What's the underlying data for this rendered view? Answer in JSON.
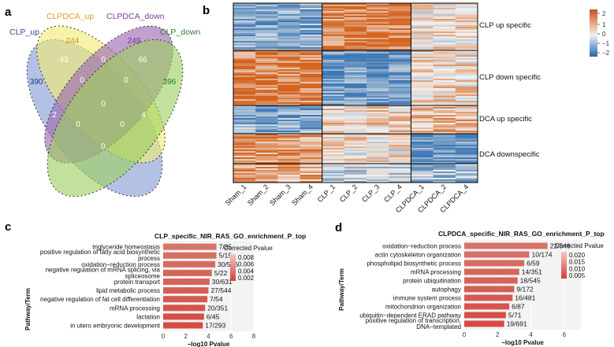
{
  "panels": {
    "a": "a",
    "b": "b",
    "c": "c",
    "d": "d"
  },
  "venn": {
    "sets": [
      {
        "name": "CLP_up",
        "color": "#2d4a9a"
      },
      {
        "name": "CLPDCA_up",
        "color": "#e49a23"
      },
      {
        "name": "CLPDCA_down",
        "color": "#7b3e96"
      },
      {
        "name": "CLP_down",
        "color": "#2f7d2f"
      }
    ],
    "counts": {
      "clp_up_only": "390",
      "clpdca_up_only": "244",
      "clpdca_down_only": "249",
      "clp_down_only": "396",
      "up_up": "43",
      "up_dcadown": "0",
      "dcaup_dcadown": "0",
      "dcadown_down": "66",
      "three_a": "0",
      "three_b": "0",
      "center": "0",
      "left_low": "2",
      "mid_low_left": "0",
      "mid_low_right": "0",
      "right_low": "4",
      "bottom": "0"
    }
  },
  "heatmap": {
    "columns": [
      "Sham_1",
      "Sham_2",
      "Sham_3",
      "Sham_4",
      "CLP_1",
      "CLP_2",
      "CLP_3",
      "CLP_4",
      "CLPDCA_1",
      "CLPDCA_2",
      "CLPDCA_4"
    ],
    "row_groups": [
      "CLP up specific",
      "CLP down specific",
      "DCA up specific",
      "DCA downspecific"
    ],
    "scale_ticks": [
      "2",
      "1",
      "0",
      "−1",
      "−2"
    ],
    "colors": {
      "high": "#d4631f",
      "mid": "#f4f1ee",
      "low": "#3f79b5"
    }
  },
  "chart_data": [
    {
      "type": "bar",
      "title": "CLP_specific_NIR_RAS_GO_enrichment_P_top",
      "ylabel": "Pathway/Term",
      "xlabel": "−log10 Pvalue",
      "xlim": [
        0,
        8
      ],
      "xticks": [
        "0",
        "2",
        "4",
        "6",
        "8"
      ],
      "legend_title": "Corrected Pvalue",
      "legend_ticks": [
        "0.008",
        "0.006",
        "0.004",
        "0.002"
      ],
      "categories": [
        [
          "triglyceride homeostasis"
        ],
        [
          "positive regulation of fatty acid biosynthetic",
          "process"
        ],
        [
          "oxidation−reduction process"
        ],
        [
          "negative regulation of mRNA splicing, via",
          "spliceosome"
        ],
        [
          "protein transport"
        ],
        [
          "lipid metabolic process"
        ],
        [
          "negative regulation of fat cell differentiation"
        ],
        [
          "mRNA processing"
        ],
        [
          "lactation"
        ],
        [
          "in utero embryonic development"
        ]
      ],
      "values": [
        4.7,
        4.7,
        4.6,
        4.3,
        4.1,
        4.0,
        3.9,
        3.7,
        3.6,
        3.5
      ],
      "counts": [
        "7/35",
        "5/15",
        "30/546",
        "5/22",
        "30/631",
        "27/544",
        "7/54",
        "20/351",
        "6/45",
        "17/293"
      ]
    },
    {
      "type": "bar",
      "title": "CLPDCA_specific_NIR_RAS_GO_enrichment_P_top",
      "ylabel": "Pathway/Term",
      "xlabel": "−log10 Pvalue",
      "xlim": [
        0,
        7
      ],
      "xticks": [
        "0",
        "2",
        "4",
        "6"
      ],
      "legend_title": "Corrected Pvalue",
      "legend_ticks": [
        "0.020",
        "0.015",
        "0.010",
        "0.005"
      ],
      "categories": [
        [
          "oxidation−reduction process"
        ],
        [
          "actin cytoskeleton organization"
        ],
        [
          "phospholipid biosynthetic process"
        ],
        [
          "mRNA processing"
        ],
        [
          "protein ubiquitination"
        ],
        [
          "autophagy"
        ],
        [
          "immune system process"
        ],
        [
          "mitochondrion organization"
        ],
        [
          "ubiquitin−dependent ERAD pathway"
        ],
        [
          "positive regulation of transcription,",
          "DNA−templated"
        ]
      ],
      "values": [
        5.0,
        3.9,
        3.6,
        3.3,
        3.2,
        3.0,
        2.9,
        2.7,
        2.5,
        2.4
      ],
      "counts": [
        "22/546",
        "10/174",
        "6/59",
        "14/351",
        "18/545",
        "9/172",
        "16/481",
        "6/87",
        "5/71",
        "19/691"
      ]
    }
  ]
}
